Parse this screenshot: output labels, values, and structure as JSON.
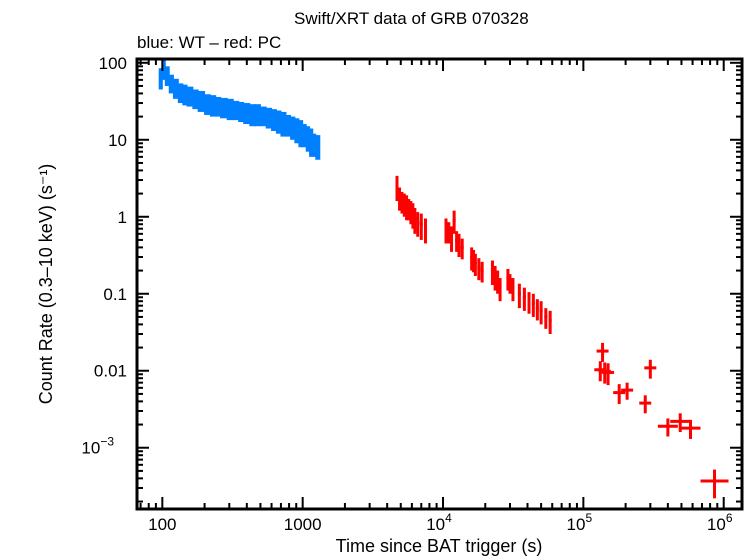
{
  "chart_data": {
    "type": "scatter",
    "title": "Swift/XRT data of GRB 070328",
    "subtitle": "blue: WT – red: PC",
    "xlabel": "Time since BAT trigger (s)",
    "ylabel": "Count Rate (0.3–10 keV) (s⁻¹)",
    "xscale": "log",
    "yscale": "log",
    "xlim": [
      66,
      1350000
    ],
    "ylim": [
      0.00016,
      112
    ],
    "x_ticks": [
      {
        "value": 100,
        "label": "100"
      },
      {
        "value": 1000,
        "label": "1000"
      },
      {
        "value": 10000,
        "label": "10",
        "sup": "4"
      },
      {
        "value": 100000,
        "label": "10",
        "sup": "5"
      },
      {
        "value": 1000000,
        "label": "10",
        "sup": "6"
      }
    ],
    "y_ticks": [
      {
        "value": 100,
        "label": "100"
      },
      {
        "value": 10,
        "label": "10"
      },
      {
        "value": 1,
        "label": "1"
      },
      {
        "value": 0.1,
        "label": "0.1"
      },
      {
        "value": 0.01,
        "label": "0.01"
      },
      {
        "value": 0.001,
        "label": "10",
        "sup": "−3"
      }
    ],
    "grid": false,
    "legend": "subtitle text top-left",
    "series": [
      {
        "name": "WT",
        "color": "#0080ff",
        "style": "dense-errorbars",
        "points": [
          [
            95,
            65,
            20
          ],
          [
            100,
            85,
            25
          ],
          [
            105,
            70,
            20
          ],
          [
            112,
            55,
            15
          ],
          [
            120,
            48,
            14
          ],
          [
            130,
            42,
            12
          ],
          [
            140,
            40,
            12
          ],
          [
            150,
            38,
            11
          ],
          [
            165,
            35,
            10
          ],
          [
            180,
            33,
            10
          ],
          [
            200,
            30,
            9
          ],
          [
            220,
            29,
            9
          ],
          [
            240,
            28,
            8
          ],
          [
            260,
            27,
            8
          ],
          [
            290,
            26,
            8
          ],
          [
            320,
            25,
            7
          ],
          [
            350,
            24,
            7
          ],
          [
            380,
            23,
            7
          ],
          [
            420,
            22,
            7
          ],
          [
            460,
            22,
            7
          ],
          [
            500,
            21,
            6
          ],
          [
            550,
            20,
            6
          ],
          [
            600,
            19,
            6
          ],
          [
            650,
            18,
            6
          ],
          [
            700,
            17,
            6
          ],
          [
            760,
            16,
            5
          ],
          [
            820,
            15,
            5
          ],
          [
            880,
            14,
            5
          ],
          [
            940,
            13,
            5
          ],
          [
            1000,
            12,
            4
          ],
          [
            1060,
            11,
            4
          ],
          [
            1120,
            10,
            4
          ],
          [
            1180,
            9,
            3
          ],
          [
            1240,
            8.5,
            3
          ]
        ]
      },
      {
        "name": "PC",
        "color": "#ff0000",
        "style": "errorbars",
        "points": [
          [
            4700,
            2.5,
            0.9
          ],
          [
            4900,
            1.8,
            0.6
          ],
          [
            5100,
            1.6,
            0.5
          ],
          [
            5300,
            1.5,
            0.5
          ],
          [
            5500,
            1.4,
            0.5
          ],
          [
            5700,
            1.3,
            0.4
          ],
          [
            5900,
            1.2,
            0.4
          ],
          [
            6100,
            1.1,
            0.4
          ],
          [
            6300,
            0.95,
            0.35
          ],
          [
            6600,
            0.85,
            0.3
          ],
          [
            7000,
            0.8,
            0.3
          ],
          [
            7500,
            0.7,
            0.25
          ],
          [
            10500,
            0.7,
            0.25
          ],
          [
            11000,
            0.65,
            0.2
          ],
          [
            11500,
            0.55,
            0.2
          ],
          [
            12000,
            0.9,
            0.3
          ],
          [
            12500,
            0.5,
            0.15
          ],
          [
            13000,
            0.45,
            0.15
          ],
          [
            13700,
            0.4,
            0.12
          ],
          [
            16000,
            0.3,
            0.1
          ],
          [
            16500,
            0.28,
            0.09
          ],
          [
            17000,
            0.25,
            0.08
          ],
          [
            18000,
            0.22,
            0.07
          ],
          [
            19000,
            0.2,
            0.06
          ],
          [
            22500,
            0.2,
            0.07
          ],
          [
            23500,
            0.17,
            0.06
          ],
          [
            24500,
            0.15,
            0.05
          ],
          [
            25500,
            0.12,
            0.04
          ],
          [
            29000,
            0.16,
            0.05
          ],
          [
            30000,
            0.14,
            0.04
          ],
          [
            31500,
            0.12,
            0.04
          ],
          [
            35000,
            0.1,
            0.035
          ],
          [
            38000,
            0.09,
            0.03
          ],
          [
            41000,
            0.08,
            0.025
          ],
          [
            44000,
            0.075,
            0.025
          ],
          [
            47000,
            0.065,
            0.02
          ],
          [
            50000,
            0.06,
            0.02
          ],
          [
            54000,
            0.05,
            0.015
          ],
          [
            58000,
            0.045,
            0.015
          ],
          [
            132000,
            0.0103,
            0.003
          ],
          [
            137000,
            0.018,
            0.005
          ],
          [
            142000,
            0.0098,
            0.003
          ],
          [
            150000,
            0.0095,
            0.003
          ],
          [
            180000,
            0.0052,
            0.0015
          ],
          [
            205000,
            0.0056,
            0.0014
          ],
          [
            276000,
            0.0038,
            0.001
          ],
          [
            300000,
            0.0109,
            0.003
          ],
          [
            400000,
            0.0019,
            0.0005
          ],
          [
            490000,
            0.0022,
            0.0006
          ],
          [
            580000,
            0.0018,
            0.0005
          ],
          [
            860000,
            0.00037,
            0.00015
          ]
        ]
      }
    ]
  }
}
